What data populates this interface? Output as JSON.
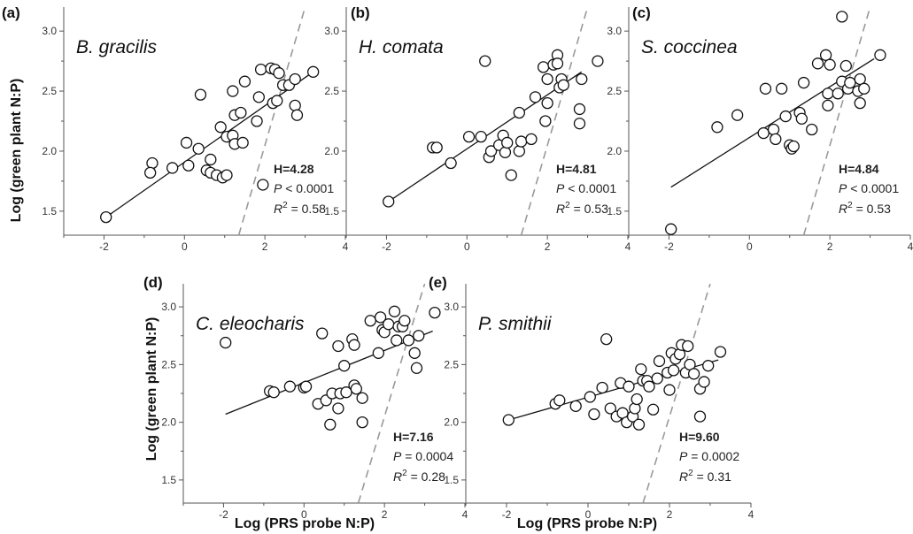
{
  "figure": {
    "ylabel": "Log (green plant N:P)",
    "xlabel": "Log (PRS probe N:P)"
  },
  "chart_data": [
    {
      "type": "scatter",
      "panel": "(a)",
      "species": "B. gracilis",
      "stats": {
        "H": "H=4.28",
        "P_label": "P",
        "P_value": "< 0.0001",
        "R_label": "R",
        "R_sup": "2",
        "R_value": "= 0.58"
      },
      "xlim": [
        -3,
        4
      ],
      "ylim": [
        1.3,
        3.2
      ],
      "xticks": [
        -2,
        0,
        2,
        4
      ],
      "yticks": [
        1.5,
        2.0,
        2.5,
        3.0
      ],
      "xticklabels": [
        "-2",
        "0",
        "2",
        "4"
      ],
      "yticklabels": [
        "1.5",
        "2.0",
        "2.5",
        "3.0"
      ],
      "fit_line": [
        [
          -1.95,
          1.45
        ],
        [
          3.2,
          2.66
        ]
      ],
      "ref_line": [
        [
          1.35,
          1.3
        ],
        [
          3.0,
          3.2
        ]
      ],
      "points": [
        [
          -1.95,
          1.45
        ],
        [
          -0.8,
          1.9
        ],
        [
          -0.85,
          1.82
        ],
        [
          -0.3,
          1.86
        ],
        [
          0.05,
          2.07
        ],
        [
          0.1,
          1.88
        ],
        [
          0.35,
          2.02
        ],
        [
          0.4,
          2.47
        ],
        [
          0.55,
          1.84
        ],
        [
          0.65,
          1.82
        ],
        [
          0.65,
          1.93
        ],
        [
          0.8,
          1.8
        ],
        [
          0.9,
          2.2
        ],
        [
          0.95,
          1.78
        ],
        [
          1.05,
          2.12
        ],
        [
          1.05,
          1.8
        ],
        [
          1.2,
          2.5
        ],
        [
          1.2,
          2.13
        ],
        [
          1.25,
          2.06
        ],
        [
          1.25,
          2.3
        ],
        [
          1.4,
          2.32
        ],
        [
          1.45,
          2.07
        ],
        [
          1.5,
          2.58
        ],
        [
          1.8,
          2.25
        ],
        [
          1.85,
          2.45
        ],
        [
          1.9,
          2.68
        ],
        [
          1.95,
          1.72
        ],
        [
          2.15,
          2.69
        ],
        [
          2.2,
          2.4
        ],
        [
          2.25,
          2.68
        ],
        [
          2.3,
          2.42
        ],
        [
          2.35,
          2.65
        ],
        [
          2.45,
          2.55
        ],
        [
          2.6,
          2.55
        ],
        [
          2.75,
          2.6
        ],
        [
          2.75,
          2.38
        ],
        [
          2.8,
          2.3
        ],
        [
          3.2,
          2.66
        ]
      ]
    },
    {
      "type": "scatter",
      "panel": "(b)",
      "species": "H. comata",
      "stats": {
        "H": "H=4.81",
        "P_label": "P",
        "P_value": "< 0.0001",
        "R_label": "R",
        "R_sup": "2",
        "R_value": "= 0.53"
      },
      "xlim": [
        -3,
        4
      ],
      "ylim": [
        1.3,
        3.2
      ],
      "xticks": [
        -2,
        0,
        2,
        4
      ],
      "yticks": [
        1.5,
        2.0,
        2.5,
        3.0
      ],
      "xticklabels": [
        "-2",
        "0",
        "2",
        "4"
      ],
      "yticklabels": [
        "1.5",
        "2.0",
        "2.5",
        "3.0"
      ],
      "fit_line": [
        [
          -1.95,
          1.58
        ],
        [
          2.85,
          2.66
        ]
      ],
      "ref_line": [
        [
          1.35,
          1.3
        ],
        [
          3.0,
          3.2
        ]
      ],
      "points": [
        [
          -1.95,
          1.58
        ],
        [
          -0.85,
          2.03
        ],
        [
          -0.75,
          2.03
        ],
        [
          -0.4,
          1.9
        ],
        [
          0.05,
          2.12
        ],
        [
          0.35,
          2.12
        ],
        [
          0.45,
          2.75
        ],
        [
          0.55,
          1.95
        ],
        [
          0.6,
          2.0
        ],
        [
          0.8,
          2.05
        ],
        [
          0.9,
          2.13
        ],
        [
          0.95,
          1.99
        ],
        [
          1.0,
          2.07
        ],
        [
          1.1,
          1.8
        ],
        [
          1.3,
          2.32
        ],
        [
          1.3,
          2.0
        ],
        [
          1.35,
          2.08
        ],
        [
          1.6,
          2.1
        ],
        [
          1.7,
          2.45
        ],
        [
          1.9,
          2.7
        ],
        [
          1.95,
          2.25
        ],
        [
          2.0,
          2.4
        ],
        [
          2.0,
          2.6
        ],
        [
          2.15,
          2.72
        ],
        [
          2.25,
          2.8
        ],
        [
          2.25,
          2.73
        ],
        [
          2.3,
          2.53
        ],
        [
          2.35,
          2.6
        ],
        [
          2.4,
          2.55
        ],
        [
          2.8,
          2.35
        ],
        [
          2.8,
          2.23
        ],
        [
          2.85,
          2.6
        ],
        [
          3.25,
          2.75
        ]
      ]
    },
    {
      "type": "scatter",
      "panel": "(c)",
      "species": "S. coccinea",
      "stats": {
        "H": "H=4.84",
        "P_label": "P",
        "P_value": "< 0.0001",
        "R_label": "R",
        "R_sup": "2",
        "R_value": "= 0.53"
      },
      "xlim": [
        -3,
        4
      ],
      "ylim": [
        1.3,
        3.2
      ],
      "xticks": [
        -2,
        0,
        2,
        4
      ],
      "yticks": [
        1.5,
        2.0,
        2.5,
        3.0
      ],
      "xticklabels": [
        "-2",
        "0",
        "2",
        "4"
      ],
      "yticklabels": [
        "1.5",
        "2.0",
        "2.5",
        "3.0"
      ],
      "fit_line": [
        [
          -1.95,
          1.7
        ],
        [
          3.1,
          2.77
        ]
      ],
      "ref_line": [
        [
          1.35,
          1.3
        ],
        [
          3.0,
          3.2
        ]
      ],
      "points": [
        [
          -1.95,
          1.35
        ],
        [
          -0.8,
          2.2
        ],
        [
          -0.3,
          2.3
        ],
        [
          0.35,
          2.15
        ],
        [
          0.4,
          2.52
        ],
        [
          0.6,
          2.18
        ],
        [
          0.65,
          2.1
        ],
        [
          0.8,
          2.52
        ],
        [
          0.9,
          2.29
        ],
        [
          1.0,
          2.05
        ],
        [
          1.05,
          2.02
        ],
        [
          1.1,
          2.04
        ],
        [
          1.25,
          2.32
        ],
        [
          1.3,
          2.27
        ],
        [
          1.35,
          2.57
        ],
        [
          1.55,
          2.18
        ],
        [
          1.7,
          2.73
        ],
        [
          1.9,
          2.8
        ],
        [
          1.95,
          2.48
        ],
        [
          1.95,
          2.38
        ],
        [
          2.0,
          2.72
        ],
        [
          2.2,
          2.48
        ],
        [
          2.3,
          2.58
        ],
        [
          2.3,
          3.12
        ],
        [
          2.4,
          2.71
        ],
        [
          2.45,
          2.52
        ],
        [
          2.5,
          2.57
        ],
        [
          2.7,
          2.5
        ],
        [
          2.75,
          2.6
        ],
        [
          2.75,
          2.4
        ],
        [
          2.85,
          2.52
        ],
        [
          3.25,
          2.8
        ]
      ]
    },
    {
      "type": "scatter",
      "panel": "(d)",
      "species": "C. eleocharis",
      "stats": {
        "H": "H=7.16",
        "P_label": "P",
        "P_value": "= 0.0004",
        "R_label": "R",
        "R_sup": "2",
        "R_value": "= 0.28"
      },
      "xlim": [
        -3,
        4
      ],
      "ylim": [
        1.3,
        3.2
      ],
      "xticks": [
        -2,
        0,
        2,
        4
      ],
      "yticks": [
        1.5,
        2.0,
        2.5,
        3.0
      ],
      "xticklabels": [
        "-2",
        "0",
        "2",
        "4"
      ],
      "yticklabels": [
        "1.5",
        "2.0",
        "2.5",
        "3.0"
      ],
      "fit_line": [
        [
          -1.95,
          2.07
        ],
        [
          3.2,
          2.79
        ]
      ],
      "ref_line": [
        [
          1.35,
          1.3
        ],
        [
          3.0,
          3.2
        ]
      ],
      "points": [
        [
          -1.95,
          2.69
        ],
        [
          -0.85,
          2.27
        ],
        [
          -0.75,
          2.26
        ],
        [
          -0.35,
          2.31
        ],
        [
          0.0,
          2.3
        ],
        [
          0.05,
          2.31
        ],
        [
          0.35,
          2.16
        ],
        [
          0.45,
          2.77
        ],
        [
          0.55,
          2.19
        ],
        [
          0.65,
          1.98
        ],
        [
          0.7,
          2.25
        ],
        [
          0.85,
          2.66
        ],
        [
          0.85,
          2.12
        ],
        [
          0.9,
          2.25
        ],
        [
          1.0,
          2.49
        ],
        [
          1.05,
          2.26
        ],
        [
          1.2,
          2.72
        ],
        [
          1.25,
          2.67
        ],
        [
          1.25,
          2.32
        ],
        [
          1.3,
          2.29
        ],
        [
          1.45,
          2.21
        ],
        [
          1.45,
          2.0
        ],
        [
          1.65,
          2.88
        ],
        [
          1.85,
          2.6
        ],
        [
          1.9,
          2.91
        ],
        [
          1.95,
          2.8
        ],
        [
          2.0,
          2.78
        ],
        [
          2.1,
          2.85
        ],
        [
          2.25,
          2.96
        ],
        [
          2.3,
          2.71
        ],
        [
          2.35,
          2.83
        ],
        [
          2.45,
          2.83
        ],
        [
          2.5,
          2.88
        ],
        [
          2.6,
          2.71
        ],
        [
          2.75,
          2.6
        ],
        [
          2.8,
          2.47
        ],
        [
          2.85,
          2.75
        ],
        [
          3.25,
          2.95
        ]
      ]
    },
    {
      "type": "scatter",
      "panel": "(e)",
      "species": "P. smithii",
      "stats": {
        "H": "H=9.60",
        "P_label": "P",
        "P_value": "= 0.0002",
        "R_label": "R",
        "R_sup": "2",
        "R_value": "= 0.31"
      },
      "xlim": [
        -3,
        4
      ],
      "ylim": [
        1.3,
        3.2
      ],
      "xticks": [
        -2,
        0,
        2,
        4
      ],
      "yticks": [
        1.5,
        2.0,
        2.5,
        3.0
      ],
      "xticklabels": [
        "-2",
        "0",
        "2",
        "4"
      ],
      "yticklabels": [
        "1.5",
        "2.0",
        "2.5",
        "3.0"
      ],
      "fit_line": [
        [
          -1.95,
          2.02
        ],
        [
          3.2,
          2.54
        ]
      ],
      "ref_line": [
        [
          1.35,
          1.3
        ],
        [
          3.0,
          3.2
        ]
      ],
      "points": [
        [
          -1.95,
          2.02
        ],
        [
          -0.8,
          2.16
        ],
        [
          -0.7,
          2.19
        ],
        [
          -0.3,
          2.14
        ],
        [
          0.05,
          2.22
        ],
        [
          0.15,
          2.07
        ],
        [
          0.35,
          2.3
        ],
        [
          0.45,
          2.72
        ],
        [
          0.55,
          2.12
        ],
        [
          0.7,
          2.05
        ],
        [
          0.8,
          2.34
        ],
        [
          0.85,
          2.08
        ],
        [
          0.95,
          2.0
        ],
        [
          1.0,
          2.31
        ],
        [
          1.1,
          2.05
        ],
        [
          1.15,
          2.12
        ],
        [
          1.2,
          2.2
        ],
        [
          1.25,
          1.98
        ],
        [
          1.3,
          2.46
        ],
        [
          1.35,
          2.36
        ],
        [
          1.45,
          2.36
        ],
        [
          1.5,
          2.31
        ],
        [
          1.6,
          2.11
        ],
        [
          1.7,
          2.38
        ],
        [
          1.75,
          2.53
        ],
        [
          1.95,
          2.43
        ],
        [
          2.0,
          2.28
        ],
        [
          2.05,
          2.6
        ],
        [
          2.1,
          2.45
        ],
        [
          2.15,
          2.55
        ],
        [
          2.25,
          2.59
        ],
        [
          2.3,
          2.67
        ],
        [
          2.4,
          2.43
        ],
        [
          2.45,
          2.66
        ],
        [
          2.5,
          2.5
        ],
        [
          2.6,
          2.42
        ],
        [
          2.75,
          2.05
        ],
        [
          2.75,
          2.29
        ],
        [
          2.85,
          2.35
        ],
        [
          2.95,
          2.49
        ],
        [
          3.25,
          2.61
        ]
      ]
    }
  ]
}
